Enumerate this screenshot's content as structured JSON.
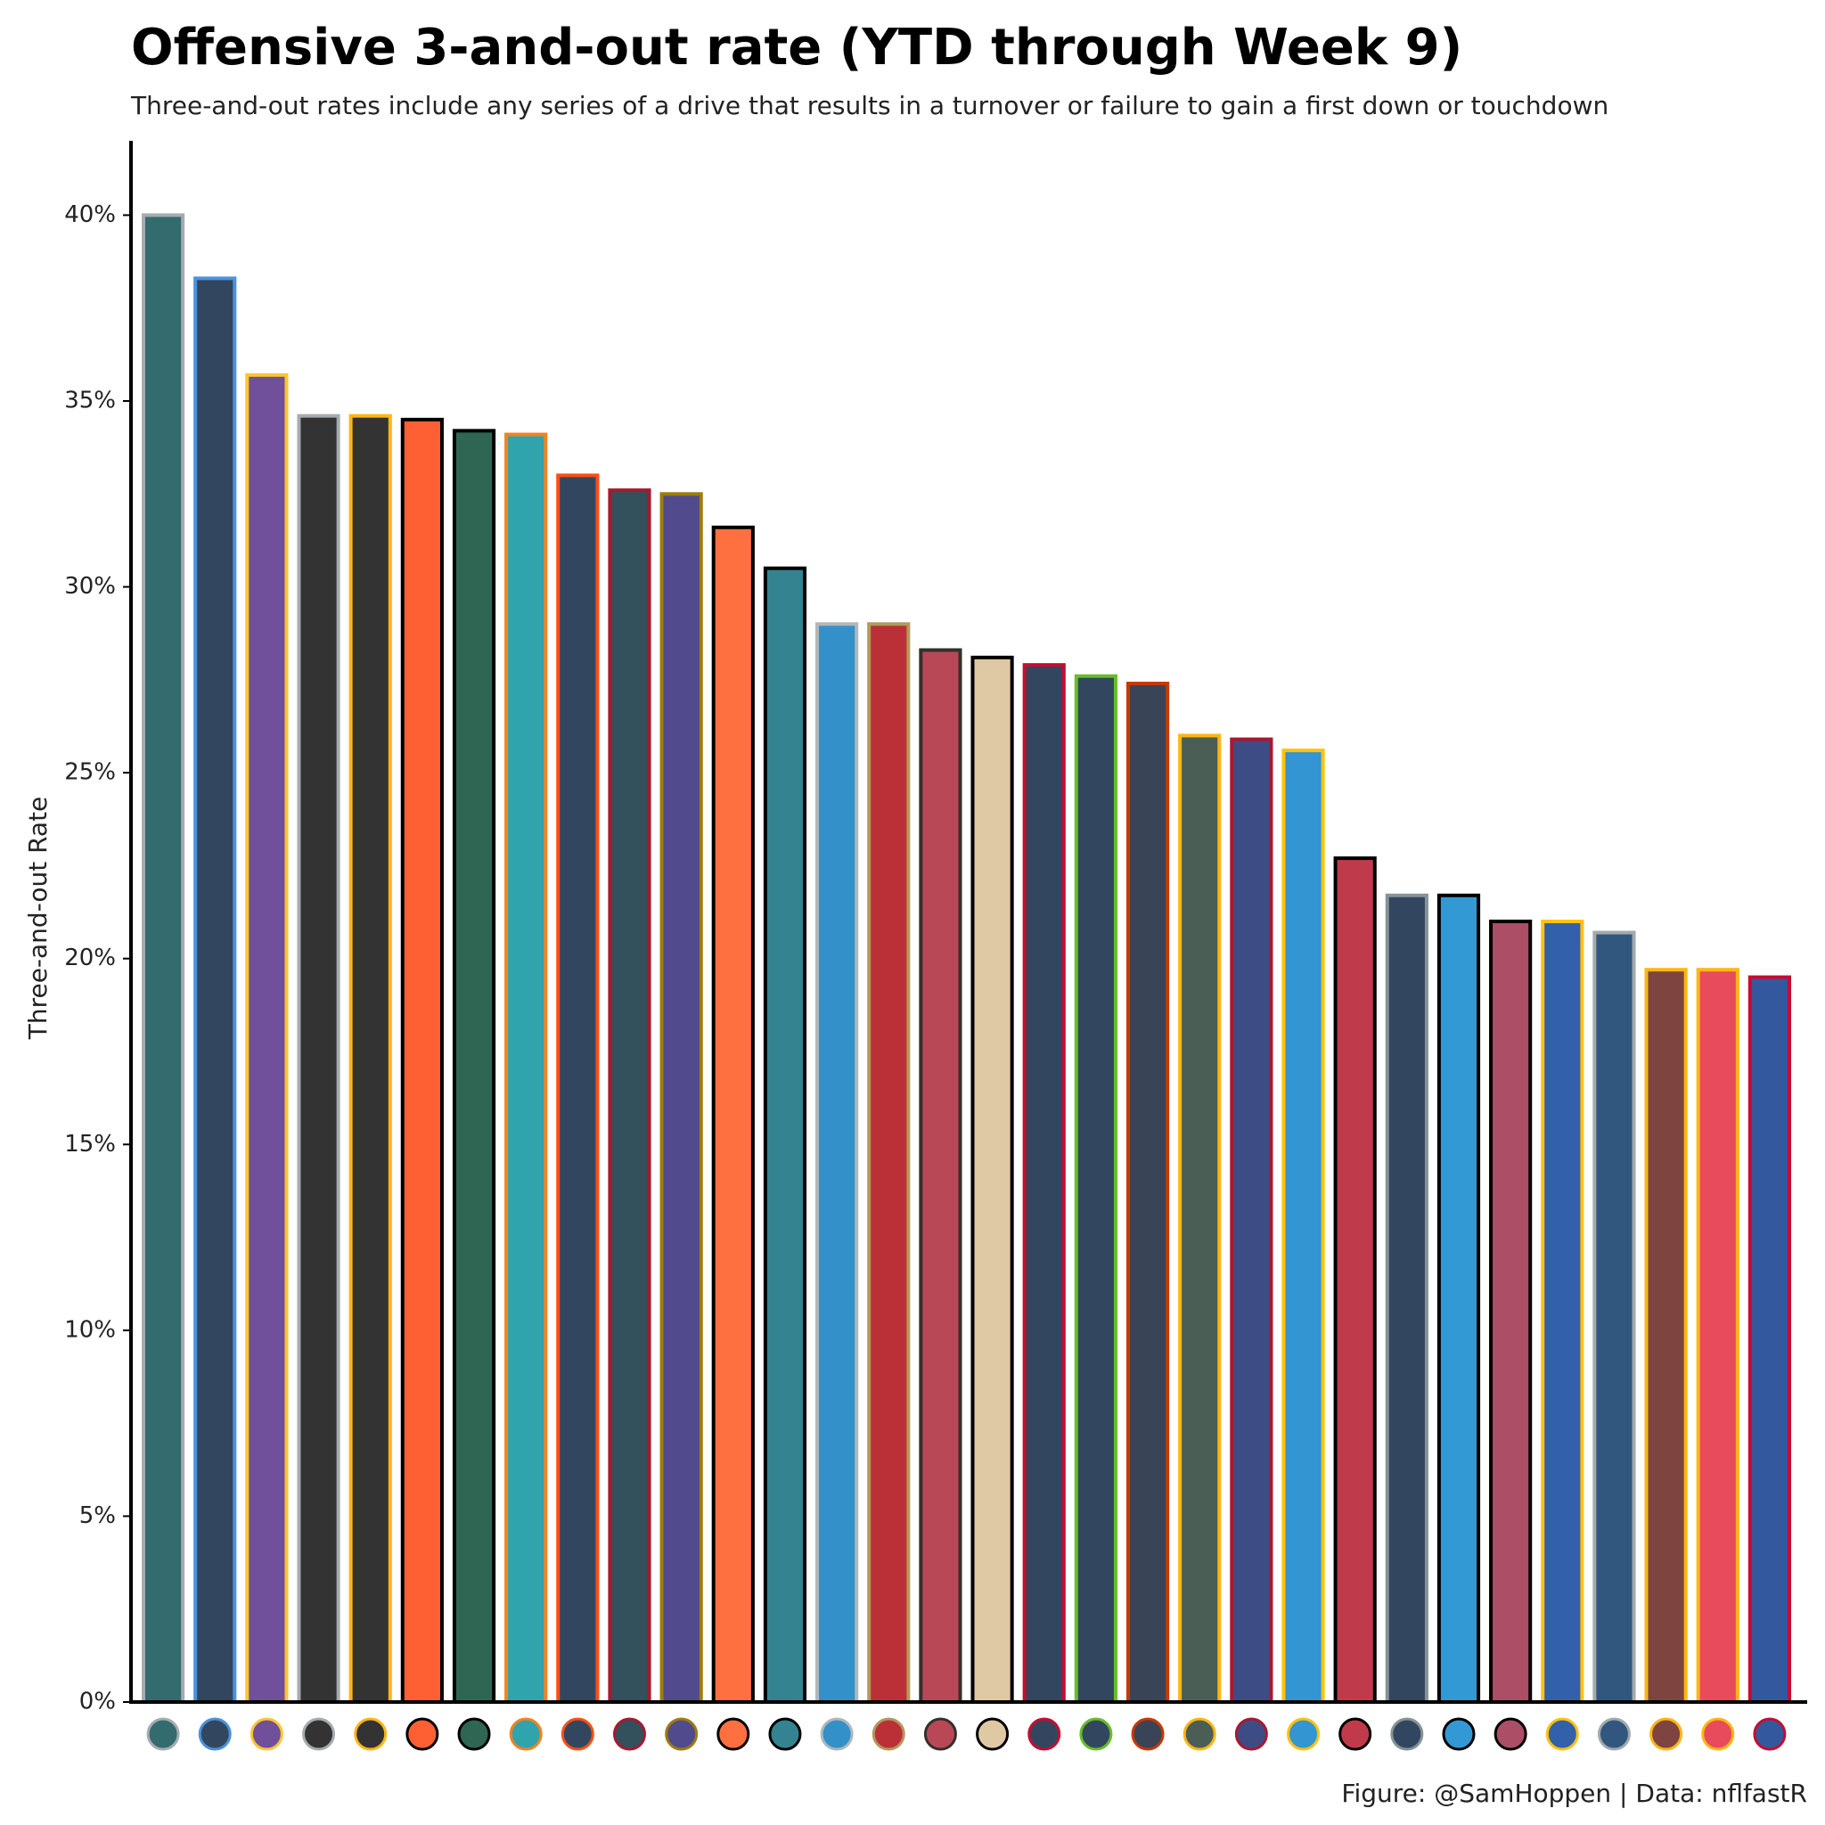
{
  "chart_data": {
    "type": "bar",
    "title": "Offensive 3-and-out rate (YTD through Week 9)",
    "subtitle": "Three-and-out rates include any series of a drive that results in a turnover or failure to gain a first down or touchdown",
    "y_label": "Three-and-out Rate",
    "caption": "Figure: @SamHoppen | Data: nflfastR",
    "categories": [
      null,
      null,
      null,
      null,
      null,
      null,
      null,
      null,
      null,
      null,
      null,
      null,
      null,
      null,
      null,
      null,
      null,
      null,
      null,
      null,
      null,
      null,
      null,
      null,
      null,
      null,
      null,
      null,
      null,
      null,
      null,
      null
    ],
    "values": [
      40.0,
      38.3,
      35.7,
      34.6,
      34.6,
      34.5,
      34.2,
      34.1,
      33.0,
      32.6,
      32.5,
      31.6,
      30.5,
      29.0,
      29.0,
      28.3,
      28.1,
      27.9,
      27.6,
      27.4,
      26.0,
      25.9,
      25.6,
      22.7,
      21.7,
      21.7,
      21.0,
      21.0,
      20.7,
      19.7,
      19.7,
      19.5
    ],
    "colors": [
      "#336b6f",
      "#32475f",
      "#70509b",
      "#333333",
      "#333333",
      "#ff6033",
      "#2f6653",
      "#30a4ad",
      "#32475f",
      "#33505d",
      "#514a8c",
      "#ff7040",
      "#338490",
      "#3390c9",
      "#bb3036",
      "#b94857",
      "#dec9a4",
      "#32475f",
      "#32475f",
      "#394456",
      "#4a5e55",
      "#3d4c85",
      "#3395d2",
      "#bf3b4c",
      "#32475f",
      "#3399d4",
      "#ac4e65",
      "#3360aa",
      "#32577f",
      "#7d4440",
      "#e84b5c",
      "#33589e"
    ],
    "edge_colors": [
      "#a5acaf",
      "#4b92db",
      "#ffc62f",
      "#a5acaf",
      "#ffb612",
      "#000000",
      "#000000",
      "#f58220",
      "#fb4f14",
      "#a71930",
      "#9e7c0c",
      "#000000",
      "#000000",
      "#b0b7bc",
      "#b3995d",
      "#34302b",
      "#000000",
      "#c60c30",
      "#69be28",
      "#c83803",
      "#ffb612",
      "#a71930",
      "#ffc20e",
      "#000000",
      "#869397",
      "#000000",
      "#000000",
      "#ffc20e",
      "#a2aaad",
      "#ffb612",
      "#ffb612",
      "#c60c30"
    ],
    "ylim": [
      0,
      42
    ],
    "yticks": [
      {
        "value": 0,
        "label": "0%"
      },
      {
        "value": 5,
        "label": "5%"
      },
      {
        "value": 10,
        "label": "10%"
      },
      {
        "value": 15,
        "label": "15%"
      },
      {
        "value": 20,
        "label": "20%"
      },
      {
        "value": 25,
        "label": "25%"
      },
      {
        "value": 30,
        "label": "30%"
      },
      {
        "value": 35,
        "label": "35%"
      },
      {
        "value": 40,
        "label": "40%"
      }
    ],
    "grid": false
  }
}
